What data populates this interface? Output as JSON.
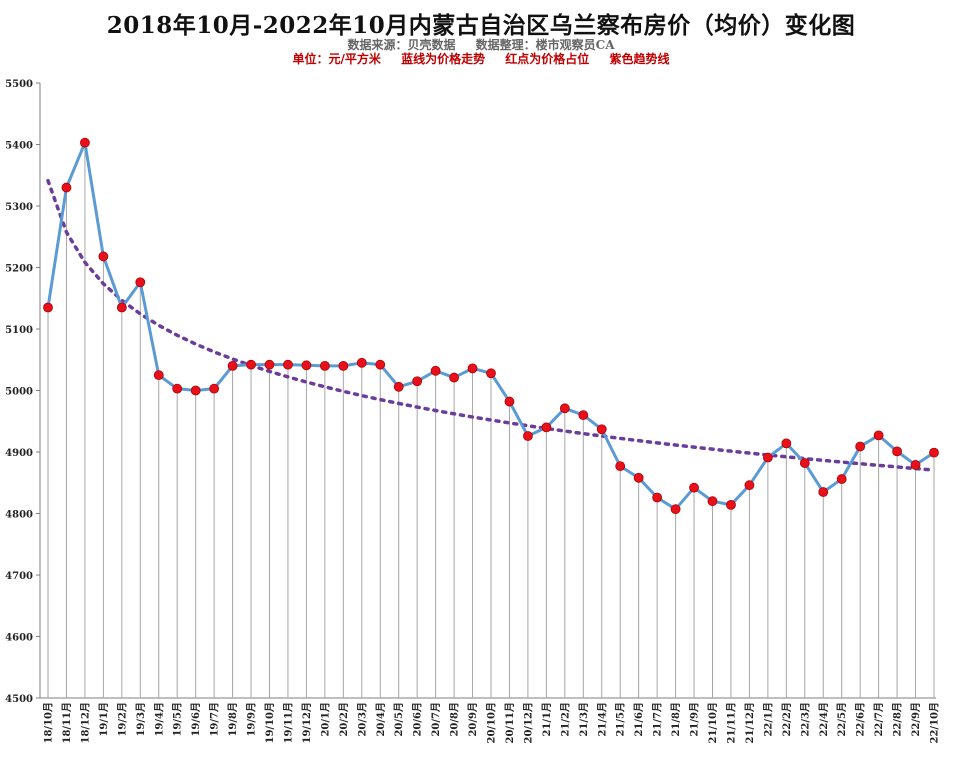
{
  "header": {
    "title": "2018年10月-2022年10月内蒙古自治区乌兰察布房价（均价）变化图",
    "source": "数据来源：贝壳数据",
    "organizer": "数据整理：楼市观察员CA",
    "unit": "单位：元/平方米",
    "legend_blue": "蓝线为价格走势",
    "legend_red": "红点为价格占位",
    "legend_purple": "紫色趋势线"
  },
  "colors": {
    "line": "#5b9bd5",
    "point": "#e8101a",
    "trend": "#6a3d9a",
    "drop": "#a6a6a6",
    "axis": "#7f7f7f"
  },
  "chart_data": {
    "type": "line",
    "title": "2018年10月-2022年10月内蒙古自治区乌兰察布房价（均价）变化图",
    "xlabel": "",
    "ylabel": "",
    "ylim": [
      4500,
      5500
    ],
    "yticks": [
      4500,
      4600,
      4700,
      4800,
      4900,
      5000,
      5100,
      5200,
      5300,
      5400,
      5500
    ],
    "grid": false,
    "drop_lines": true,
    "trendline": "logarithmic",
    "categories": [
      "18/10月",
      "18/11月",
      "18/12月",
      "19/1月",
      "19/2月",
      "19/3月",
      "19/4月",
      "19/5月",
      "19/6月",
      "19/7月",
      "19/8月",
      "19/9月",
      "19/10月",
      "19/11月",
      "19/12月",
      "20/1月",
      "20/2月",
      "20/3月",
      "20/4月",
      "20/5月",
      "20/6月",
      "20/7月",
      "20/8月",
      "20/9月",
      "20/10月",
      "20/11月",
      "20/12月",
      "21/1月",
      "21/2月",
      "21/3月",
      "21/4月",
      "21/5月",
      "21/6月",
      "21/7月",
      "21/8月",
      "21/9月",
      "21/10月",
      "21/11月",
      "21/12月",
      "22/1月",
      "22/2月",
      "22/3月",
      "22/4月",
      "22/5月",
      "22/6月",
      "22/7月",
      "22/8月",
      "22/9月",
      "22/10月"
    ],
    "values": [
      5135,
      5330,
      5403,
      5218,
      5135,
      5176,
      5025,
      5003,
      5000,
      5003,
      5040,
      5042,
      5042,
      5042,
      5041,
      5040,
      5040,
      5045,
      5042,
      5006,
      5015,
      5032,
      5021,
      5036,
      5028,
      4982,
      4926,
      4940,
      4971,
      4960,
      4937,
      4877,
      4858,
      4826,
      4807,
      4842,
      4820,
      4814,
      4846,
      4891,
      4914,
      4882,
      4835,
      4856,
      4909,
      4927,
      4901,
      4879,
      4899
    ]
  }
}
